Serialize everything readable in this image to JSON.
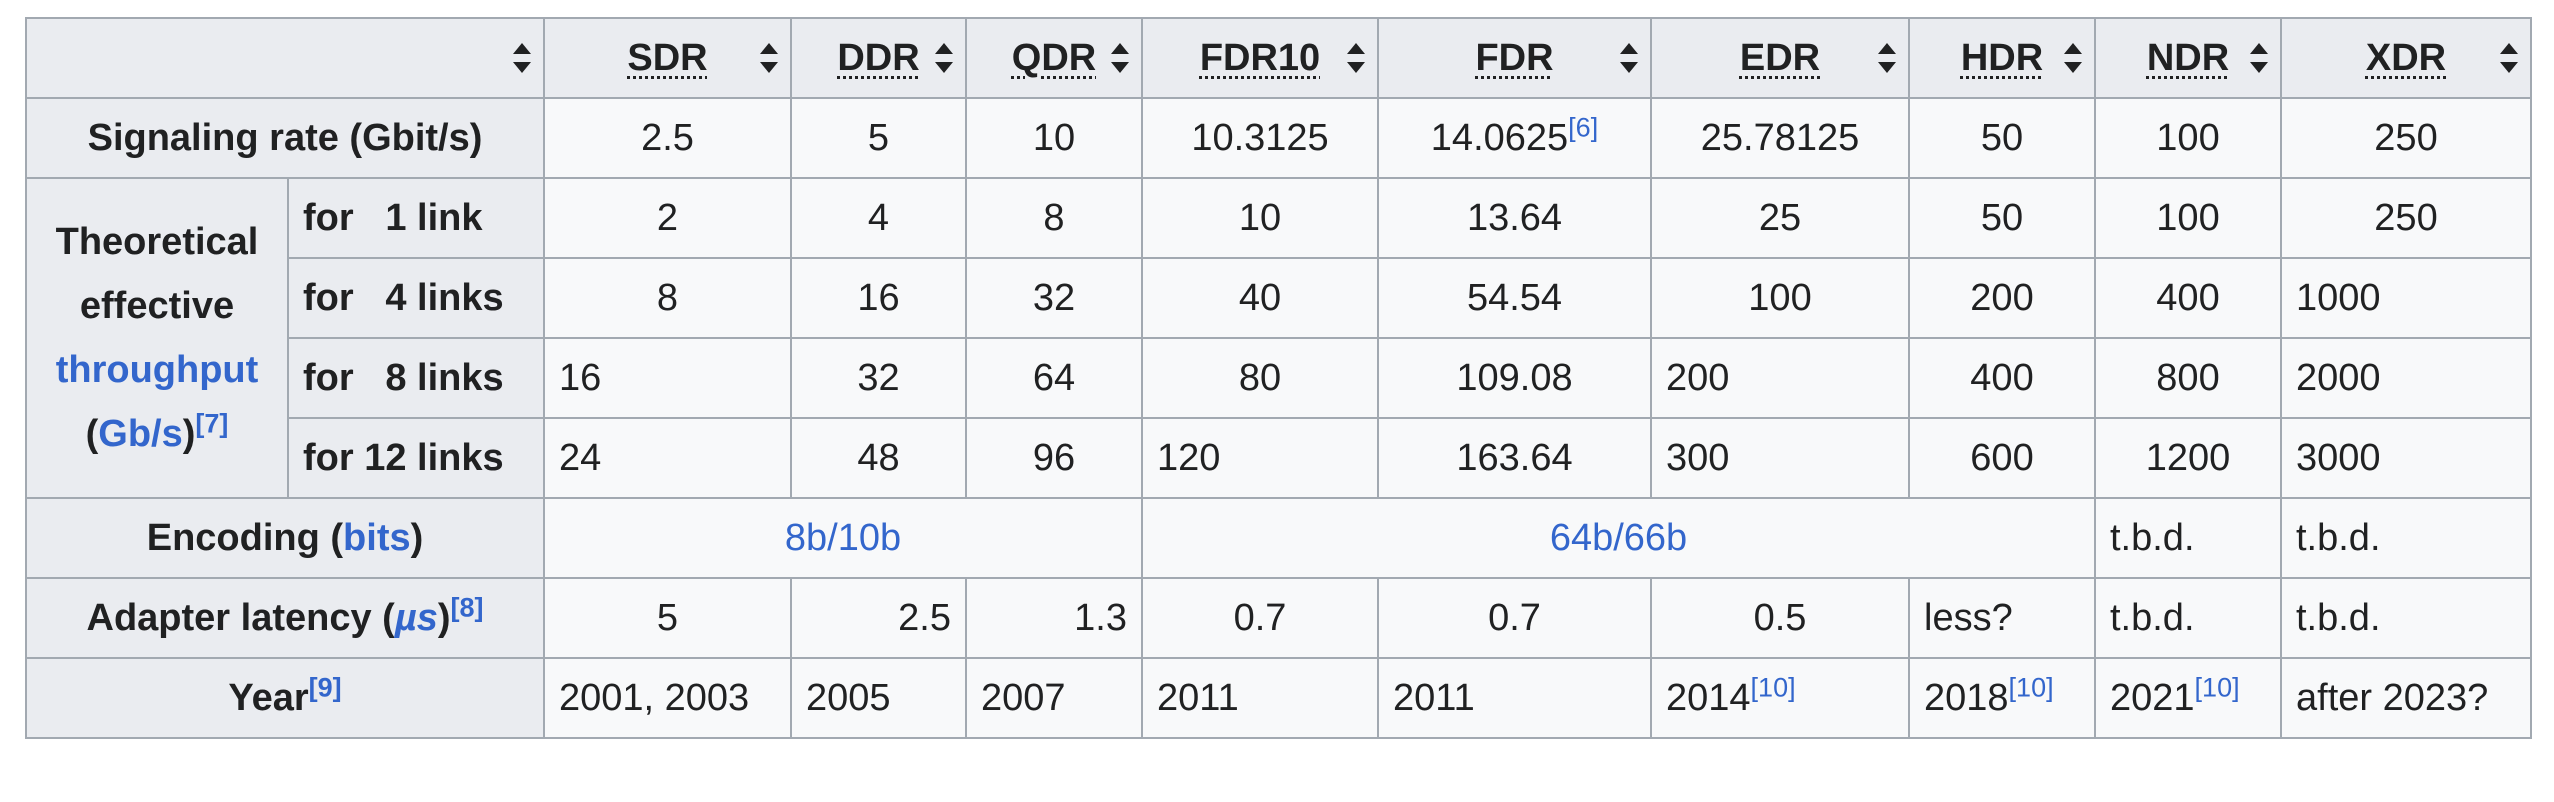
{
  "columns": [
    "SDR",
    "DDR",
    "QDR",
    "FDR10",
    "FDR",
    "EDR",
    "HDR",
    "NDR",
    "XDR"
  ],
  "rows": {
    "signaling": {
      "label": "Signaling rate (Gbit/s)",
      "values": [
        "2.5",
        "5",
        "10",
        "10.3125",
        "14.0625",
        "25.78125",
        "50",
        "100",
        "250"
      ],
      "fdr_note": "[6]"
    },
    "throughput": {
      "label_line1": "Theoretical",
      "label_line2": "effective",
      "label_link": "throughput",
      "label_open": "(",
      "label_unit": "Gb/s",
      "label_close": ")",
      "note": "[7]",
      "sublinks": [
        {
          "label": "for   1 link",
          "values": [
            "2",
            "4",
            "8",
            "10",
            "13.64",
            "25",
            "50",
            "100",
            "250"
          ]
        },
        {
          "label": "for   4 links",
          "values": [
            "8",
            "16",
            "32",
            "40",
            "54.54",
            "100",
            "200",
            "400",
            "1000"
          ]
        },
        {
          "label": "for   8 links",
          "values": [
            "16",
            "32",
            "64",
            "80",
            "109.08",
            "200",
            "400",
            "800",
            "2000"
          ]
        },
        {
          "label": "for 12 links",
          "values": [
            "24",
            "48",
            "96",
            "120",
            "163.64",
            "300",
            "600",
            "1200",
            "3000"
          ]
        }
      ]
    },
    "encoding": {
      "label_prefix": "Encoding (",
      "label_link": "bits",
      "label_suffix": ")",
      "values": [
        "8b/10b",
        "64b/66b",
        "t.b.d.",
        "t.b.d."
      ]
    },
    "latency": {
      "label_prefix": "Adapter latency (",
      "label_link": "µs",
      "label_suffix": ")",
      "note": "[8]",
      "values": [
        "5",
        "2.5",
        "1.3",
        "0.7",
        "0.7",
        "0.5",
        "less?",
        "t.b.d.",
        "t.b.d."
      ]
    },
    "year": {
      "label": "Year",
      "note": "[9]",
      "values": [
        "2001, 2003",
        "2005",
        "2007",
        "2011",
        "2011",
        "2014",
        "2018",
        "2021",
        "after 2023?"
      ],
      "edr_note": "[10]",
      "hdr_note": "[10]",
      "ndr_note": "[10]"
    }
  },
  "colors": {
    "link": "#3366cc",
    "header_bg": "#eaecf0",
    "cell_bg": "#f8f9fa",
    "border": "#a2a9b1"
  }
}
